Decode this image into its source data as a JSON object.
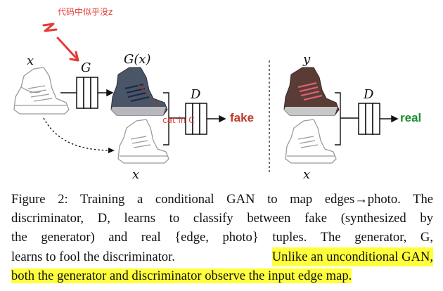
{
  "annotation": {
    "note": "代码中似乎没z",
    "z_label": "z",
    "cat_note": "cat in C"
  },
  "figure": {
    "input_label": "x",
    "generator_label": "G",
    "generated_label": "G(x)",
    "discriminator_left_label": "D",
    "discriminator_right_label": "D",
    "bottom_left_x_label": "x",
    "target_label": "y",
    "bottom_right_x_label": "x",
    "fake_label": "fake",
    "real_label": "real"
  },
  "caption": {
    "line1": "Figure 2: Training a conditional GAN to map edges→photo. The",
    "line2": "discriminator, D, learns to classify between fake (synthesized by",
    "line3": "the generator) and real {edge, photo} tuples. The generator, G,",
    "line4_plain": "learns to fool the discriminator.",
    "line4_highlight": "Unlike an unconditional GAN,",
    "line5_highlight": "both the generator and discriminator observe the input edge map."
  },
  "colors": {
    "annotation_red": "#e53935",
    "fake_red": "#c0392b",
    "real_green": "#1e8c2e",
    "highlight_yellow": "#ffff3b"
  }
}
